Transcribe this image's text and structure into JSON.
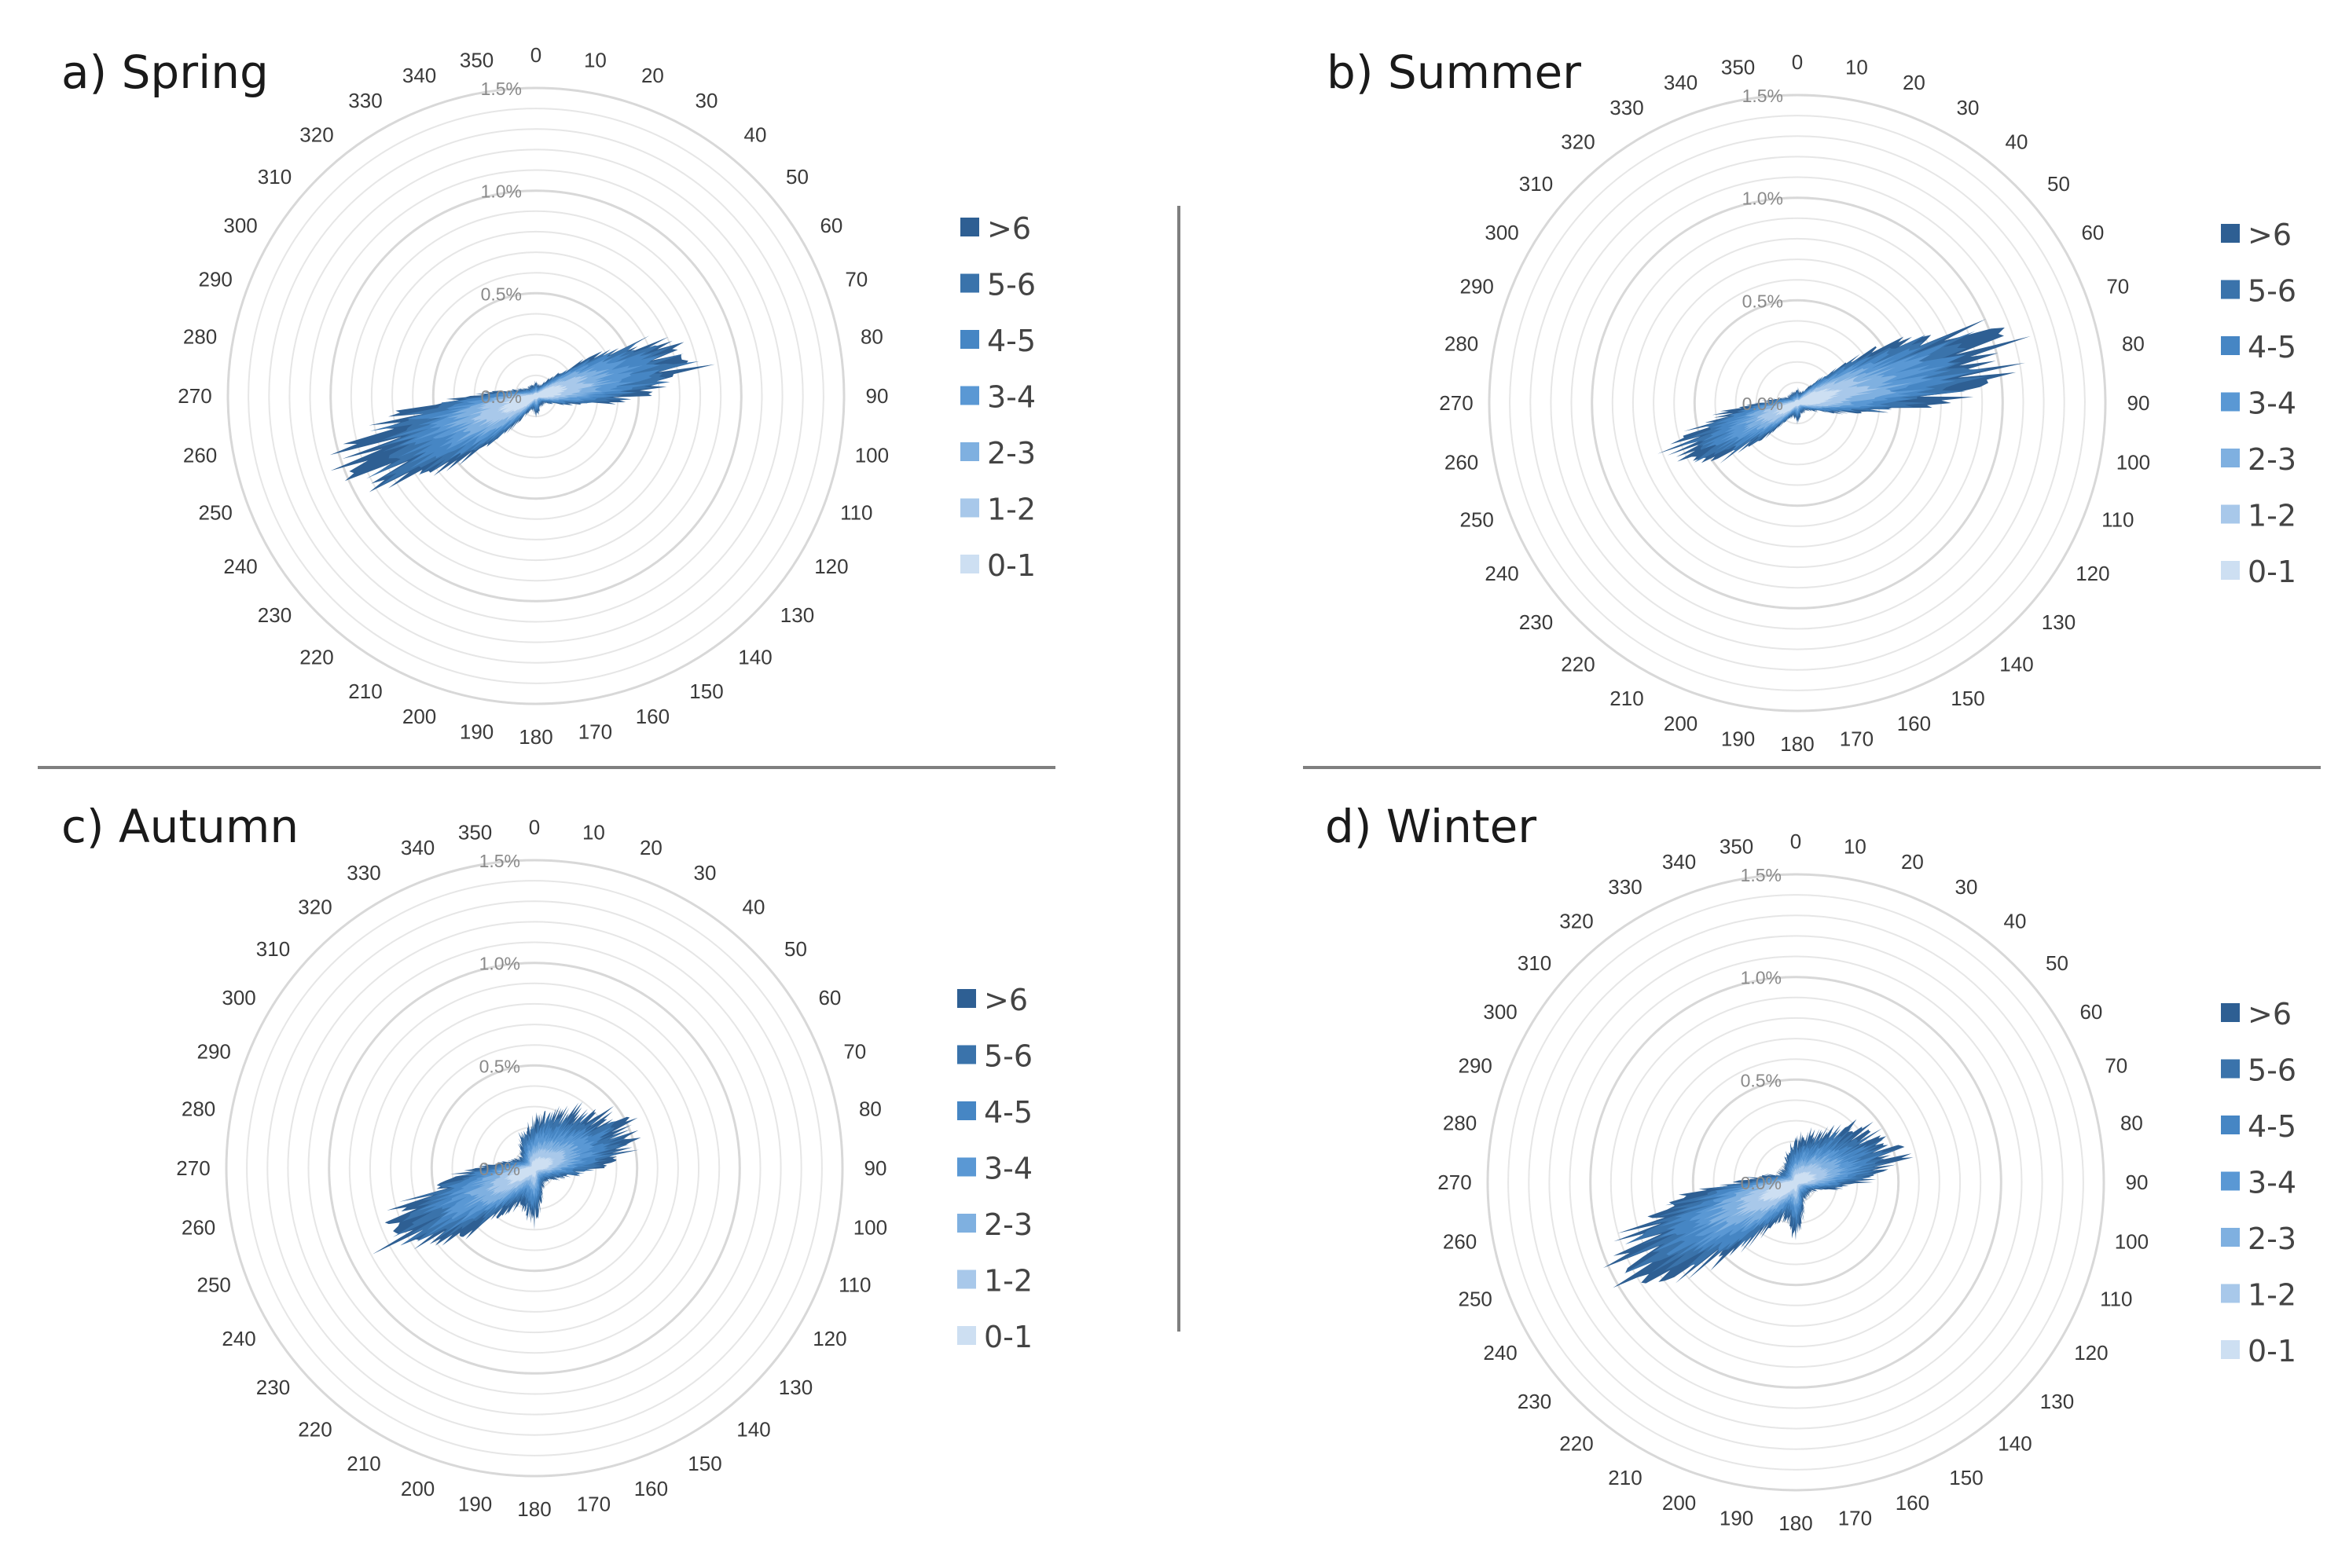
{
  "figure": {
    "legend_items": [
      ">6",
      "5-6",
      "4-5",
      "3-4",
      "2-3",
      "1-2",
      "0-1"
    ],
    "legend_colors": [
      "#2e5f93",
      "#3a73ab",
      "#4686c4",
      "#5a98d4",
      "#7fb0e0",
      "#a8c8ea",
      "#cddff2"
    ],
    "ring_labels": [
      "0.0%",
      "0.5%",
      "1.0%",
      "1.5%"
    ],
    "direction_labels": [
      "0",
      "10",
      "20",
      "30",
      "40",
      "50",
      "60",
      "70",
      "80",
      "90",
      "100",
      "110",
      "120",
      "130",
      "140",
      "150",
      "160",
      "170",
      "180",
      "190",
      "200",
      "210",
      "220",
      "230",
      "240",
      "250",
      "260",
      "270",
      "280",
      "290",
      "300",
      "310",
      "320",
      "330",
      "340",
      "350"
    ]
  },
  "chart_data": [
    {
      "type": "polar-area",
      "title": "a) Spring",
      "radial_axis": {
        "unit": "%",
        "range": [
          0,
          1.5
        ],
        "ticks": [
          0.0,
          0.5,
          1.0,
          1.5
        ]
      },
      "angular_axis": {
        "unit": "degrees",
        "ticks_every": 10
      },
      "legend": [
        ">6",
        "5-6",
        "4-5",
        "3-4",
        "2-3",
        "1-2",
        "0-1"
      ],
      "directions": [
        0,
        10,
        20,
        30,
        40,
        50,
        60,
        70,
        80,
        90,
        100,
        110,
        120,
        130,
        140,
        150,
        160,
        170,
        180,
        190,
        200,
        210,
        220,
        230,
        240,
        250,
        260,
        270,
        280,
        290,
        300,
        310,
        320,
        330,
        340,
        350
      ],
      "total_frequency": [
        0.08,
        0.06,
        0.06,
        0.08,
        0.12,
        0.22,
        0.55,
        0.85,
        0.88,
        0.55,
        0.25,
        0.12,
        0.08,
        0.06,
        0.06,
        0.06,
        0.06,
        0.09,
        0.1,
        0.08,
        0.08,
        0.12,
        0.25,
        0.55,
        0.95,
        1.05,
        0.85,
        0.35,
        0.16,
        0.1,
        0.08,
        0.06,
        0.06,
        0.06,
        0.06,
        0.06
      ]
    },
    {
      "type": "polar-area",
      "title": "b) Summer",
      "radial_axis": {
        "unit": "%",
        "range": [
          0,
          1.5
        ],
        "ticks": [
          0.0,
          0.5,
          1.0,
          1.5
        ]
      },
      "angular_axis": {
        "unit": "degrees",
        "ticks_every": 10
      },
      "legend": [
        ">6",
        "5-6",
        "4-5",
        "3-4",
        "2-3",
        "1-2",
        "0-1"
      ],
      "directions": [
        0,
        10,
        20,
        30,
        40,
        50,
        60,
        70,
        80,
        90,
        100,
        110,
        120,
        130,
        140,
        150,
        160,
        170,
        180,
        190,
        200,
        210,
        220,
        230,
        240,
        250,
        260,
        270,
        280,
        290,
        300,
        310,
        320,
        330,
        340,
        350
      ],
      "total_frequency": [
        0.08,
        0.06,
        0.06,
        0.08,
        0.14,
        0.3,
        0.7,
        1.1,
        1.2,
        0.7,
        0.3,
        0.12,
        0.08,
        0.06,
        0.06,
        0.06,
        0.06,
        0.08,
        0.1,
        0.08,
        0.08,
        0.1,
        0.18,
        0.4,
        0.65,
        0.68,
        0.45,
        0.2,
        0.12,
        0.08,
        0.06,
        0.06,
        0.06,
        0.06,
        0.06,
        0.06
      ]
    },
    {
      "type": "polar-area",
      "title": "c) Autumn",
      "radial_axis": {
        "unit": "%",
        "range": [
          0,
          1.5
        ],
        "ticks": [
          0.0,
          0.5,
          1.0,
          1.5
        ]
      },
      "angular_axis": {
        "unit": "degrees",
        "ticks_every": 10
      },
      "legend": [
        ">6",
        "5-6",
        "4-5",
        "3-4",
        "2-3",
        "1-2",
        "0-1"
      ],
      "directions": [
        0,
        10,
        20,
        30,
        40,
        50,
        60,
        70,
        80,
        90,
        100,
        110,
        120,
        130,
        140,
        150,
        160,
        170,
        180,
        190,
        200,
        210,
        220,
        230,
        240,
        250,
        260,
        270,
        280,
        290,
        300,
        310,
        320,
        330,
        340,
        350
      ],
      "total_frequency": [
        0.25,
        0.3,
        0.32,
        0.35,
        0.4,
        0.45,
        0.55,
        0.55,
        0.5,
        0.35,
        0.22,
        0.15,
        0.12,
        0.1,
        0.1,
        0.1,
        0.12,
        0.2,
        0.28,
        0.25,
        0.2,
        0.25,
        0.35,
        0.6,
        0.85,
        0.8,
        0.55,
        0.3,
        0.18,
        0.12,
        0.1,
        0.1,
        0.12,
        0.15,
        0.2,
        0.22
      ]
    },
    {
      "type": "polar-area",
      "title": "d) Winter",
      "radial_axis": {
        "unit": "%",
        "range": [
          0,
          1.5
        ],
        "ticks": [
          0.0,
          0.5,
          1.0,
          1.5
        ]
      },
      "angular_axis": {
        "unit": "degrees",
        "ticks_every": 10
      },
      "legend": [
        ">6",
        "5-6",
        "4-5",
        "3-4",
        "2-3",
        "1-2",
        "0-1"
      ],
      "directions": [
        0,
        10,
        20,
        30,
        40,
        50,
        60,
        70,
        80,
        90,
        100,
        110,
        120,
        130,
        140,
        150,
        160,
        170,
        180,
        190,
        200,
        210,
        220,
        230,
        240,
        250,
        260,
        270,
        280,
        290,
        300,
        310,
        320,
        330,
        340,
        350
      ],
      "total_frequency": [
        0.22,
        0.25,
        0.28,
        0.3,
        0.38,
        0.45,
        0.5,
        0.58,
        0.55,
        0.35,
        0.2,
        0.12,
        0.1,
        0.1,
        0.1,
        0.1,
        0.12,
        0.2,
        0.28,
        0.22,
        0.2,
        0.28,
        0.45,
        0.75,
        1.05,
        1.0,
        0.7,
        0.32,
        0.18,
        0.12,
        0.1,
        0.1,
        0.1,
        0.12,
        0.15,
        0.18
      ]
    }
  ]
}
